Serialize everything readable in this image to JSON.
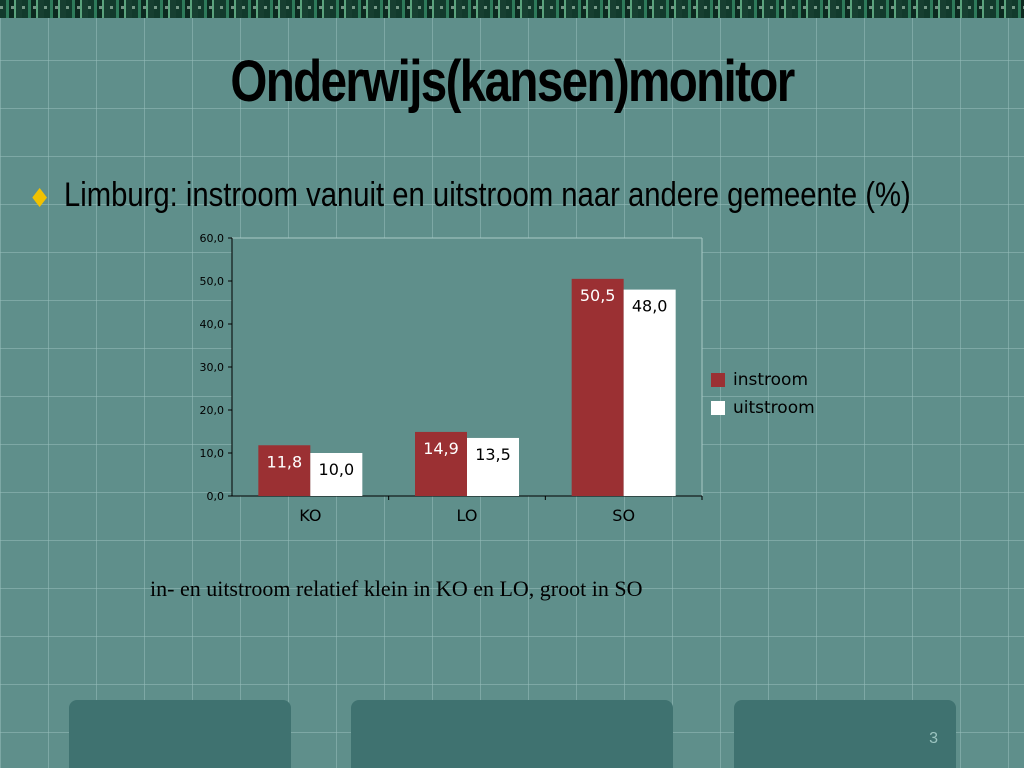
{
  "slide": {
    "title": "Onderwijs(kansen)monitor",
    "bullet_text": "Limburg: instroom vanuit en uitstroom naar andere gemeente (%)",
    "caption": "in- en uitstroom relatief klein in KO en LO, groot in SO",
    "slide_number": "3"
  },
  "chart_data": {
    "type": "bar",
    "categories": [
      "KO",
      "LO",
      "SO"
    ],
    "series": [
      {
        "name": "instroom",
        "values": [
          11.8,
          14.9,
          50.5
        ],
        "labels": [
          "11,8",
          "14,9",
          "50,5"
        ],
        "color": "#9b3033",
        "label_color": "#ffffff"
      },
      {
        "name": "uitstroom",
        "values": [
          10.0,
          13.5,
          48.0
        ],
        "labels": [
          "10,0",
          "13,5",
          "48,0"
        ],
        "color": "#ffffff",
        "label_color": "#000000"
      }
    ],
    "ylim": [
      0,
      60
    ],
    "yticks": [
      0,
      10,
      20,
      30,
      40,
      50,
      60
    ],
    "ytick_labels": [
      "0,0",
      "10,0",
      "20,0",
      "30,0",
      "40,0",
      "50,0",
      "60,0"
    ],
    "grid": false,
    "legend_position": "right"
  }
}
